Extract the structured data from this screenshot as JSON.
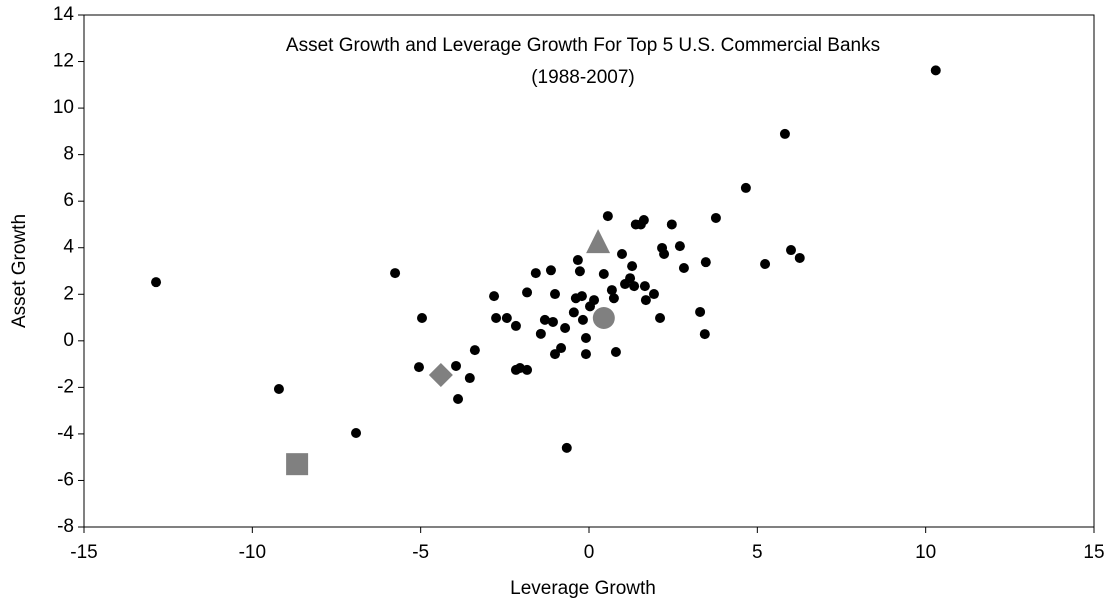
{
  "chart_data": {
    "type": "scatter",
    "title": "Asset Growth and Leverage Growth For Top 5 U.S. Commercial Banks",
    "subtitle": "(1988-2007)",
    "x_label": "Leverage Growth",
    "y_label": "Asset Growth",
    "xlim": [
      -15,
      15
    ],
    "xticks": [
      -15,
      -10,
      -5,
      0,
      5,
      10,
      15
    ],
    "ylim": [
      -8,
      14
    ],
    "yticks": [
      -8,
      -6,
      -4,
      -2,
      0,
      2,
      4,
      6,
      8,
      10,
      12,
      14
    ],
    "grid": false,
    "series": [
      {
        "color": "#000000",
        "marker": "circle",
        "x": [
          -12.86,
          -9.21,
          -6.92,
          -5.76,
          -4.96,
          -5.05,
          -3.95,
          -3.89,
          -3.54,
          -3.39,
          -2.82,
          -2.76,
          -2.44,
          -2.17,
          -2.17,
          -2.05,
          -1.84,
          -1.84,
          -1.58,
          -1.43,
          -1.31,
          -1.13,
          -1.07,
          -1.01,
          -1.01,
          -0.83,
          -0.71,
          -0.66,
          -0.45,
          -0.39,
          -0.33,
          -0.27,
          -0.21,
          -0.18,
          -0.09,
          -0.09,
          0.03,
          0.15,
          0.44,
          0.56,
          0.68,
          0.8,
          0.74,
          0.98,
          1.07,
          1.22,
          1.28,
          1.34,
          1.39,
          1.54,
          1.63,
          1.66,
          1.69,
          1.93,
          2.11,
          2.17,
          2.23,
          2.46,
          2.7,
          2.82,
          3.77,
          3.3,
          3.44,
          3.47,
          4.66,
          5.23,
          5.82,
          6.0,
          6.26,
          10.3
        ],
        "values": [
          2.52,
          -2.07,
          -3.96,
          2.91,
          0.98,
          -1.13,
          -1.08,
          -2.5,
          -1.6,
          -0.4,
          1.92,
          0.98,
          0.98,
          0.64,
          -1.25,
          -1.17,
          2.08,
          -1.25,
          2.91,
          0.3,
          0.9,
          3.03,
          0.81,
          2.01,
          -0.57,
          -0.31,
          0.55,
          -4.6,
          1.22,
          1.83,
          3.47,
          2.99,
          1.92,
          0.9,
          -0.57,
          0.12,
          1.48,
          1.75,
          2.87,
          5.36,
          2.18,
          -0.48,
          1.83,
          3.73,
          2.44,
          2.69,
          3.21,
          2.35,
          5.0,
          5.0,
          5.19,
          2.35,
          1.75,
          2.01,
          0.98,
          3.99,
          3.73,
          5.0,
          4.07,
          3.13,
          5.28,
          1.24,
          0.29,
          3.38,
          6.57,
          3.3,
          8.89,
          3.9,
          3.56,
          11.62
        ]
      },
      {
        "color": "#808080",
        "marker": "square",
        "x": [
          -8.67
        ],
        "values": [
          -5.3
        ]
      },
      {
        "color": "#808080",
        "marker": "diamond",
        "x": [
          -4.4
        ],
        "values": [
          -1.47
        ]
      },
      {
        "color": "#808080",
        "marker": "triangle",
        "x": [
          0.27
        ],
        "values": [
          4.2
        ]
      },
      {
        "color": "#808080",
        "marker": "big-circle",
        "x": [
          0.44
        ],
        "values": [
          0.98
        ]
      }
    ]
  }
}
